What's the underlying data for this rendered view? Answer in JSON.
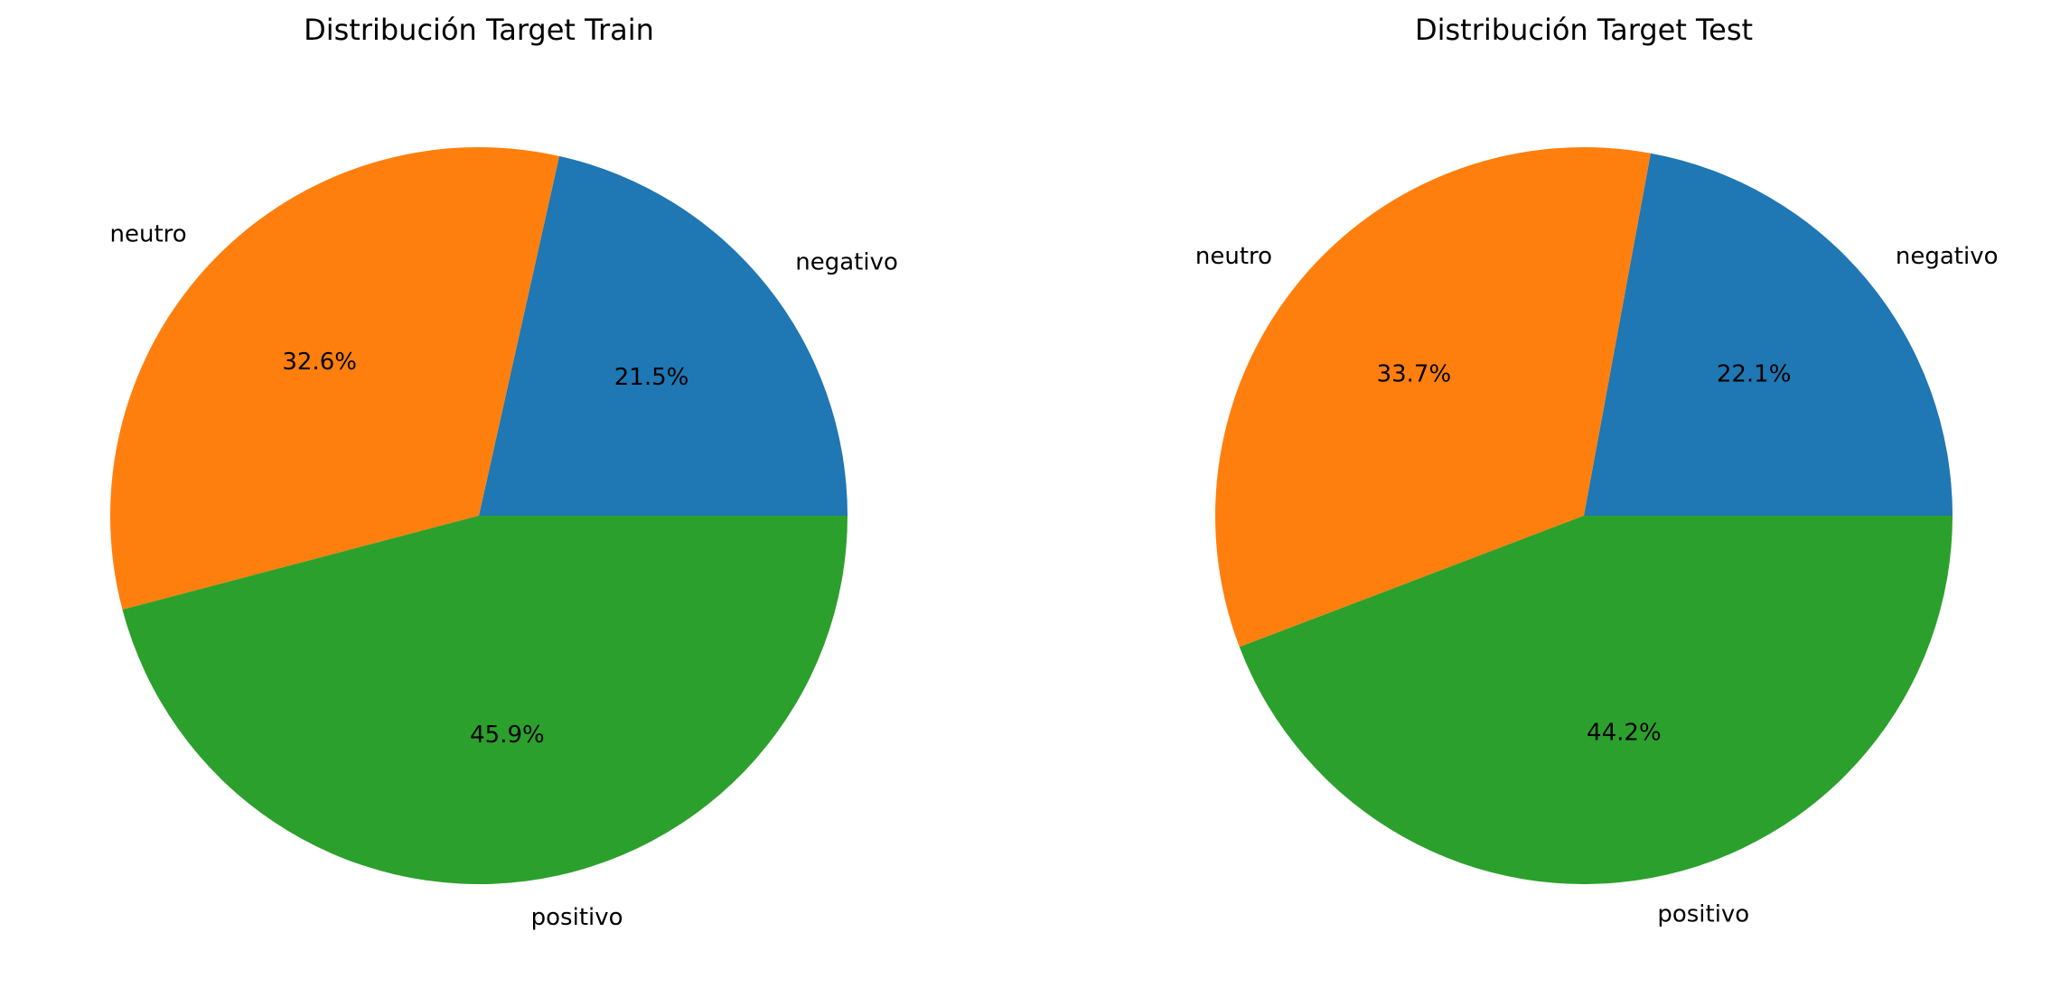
{
  "chart_data": [
    {
      "type": "pie",
      "title": "Distribución Target Train",
      "labels": [
        "negativo",
        "neutro",
        "positivo"
      ],
      "values": [
        21.5,
        32.6,
        45.9
      ],
      "pct_labels": [
        "21.5%",
        "32.6%",
        "45.9%"
      ],
      "colors": [
        "#1f77b4",
        "#ff7f0e",
        "#2ca02c"
      ],
      "start_angle_deg": 0,
      "direction": "counterclockwise"
    },
    {
      "type": "pie",
      "title": "Distribución Target Test",
      "labels": [
        "negativo",
        "neutro",
        "positivo"
      ],
      "values": [
        22.1,
        33.7,
        44.2
      ],
      "pct_labels": [
        "22.1%",
        "33.7%",
        "44.2%"
      ],
      "colors": [
        "#1f77b4",
        "#ff7f0e",
        "#2ca02c"
      ],
      "start_angle_deg": 0,
      "direction": "counterclockwise"
    }
  ]
}
